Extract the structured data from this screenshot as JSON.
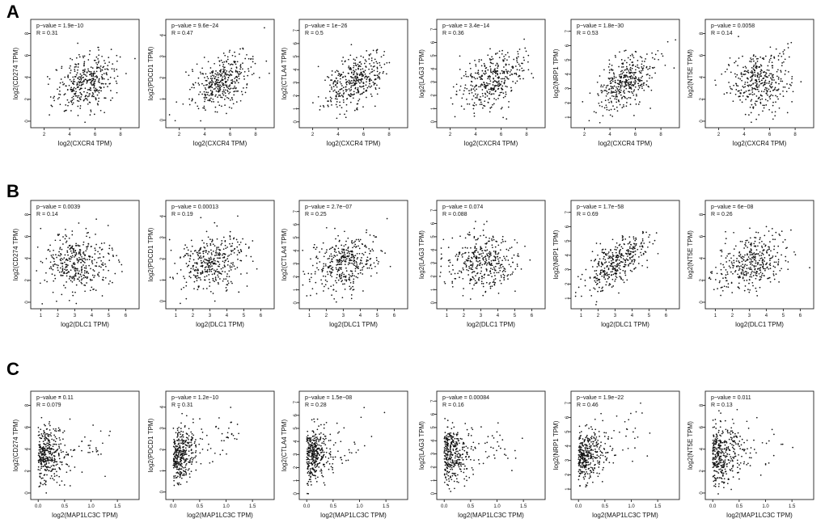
{
  "figure": {
    "rows": [
      {
        "letter": "A",
        "xlabel": "log2(CXCR4 TPM)",
        "xticks": [
          2,
          4,
          6,
          8
        ],
        "xlim": [
          1.2,
          9.2
        ],
        "x_center": 5.3,
        "x_spread": 1.2,
        "panels": [
          {
            "ylabel": "log2(CD274 TPM)",
            "pvalue": "p−value = 1.9e−10",
            "r": "R = 0.31",
            "yticks": [
              0,
              2,
              4,
              6,
              8
            ],
            "ylim": [
              -0.3,
              9
            ],
            "r_num": 0.31
          },
          {
            "ylabel": "log2(PDCD1 TPM)",
            "pvalue": "p−value = 9.6e−24",
            "r": "R = 0.47",
            "yticks": [
              0,
              1,
              2,
              3,
              4
            ],
            "ylim": [
              -0.2,
              4.6
            ],
            "r_num": 0.47
          },
          {
            "ylabel": "log2(CTLA4 TPM)",
            "pvalue": "p−value = 1e−26",
            "r": "R = 0.5",
            "yticks": [
              0,
              1,
              2,
              3,
              4,
              5,
              6,
              7
            ],
            "ylim": [
              -0.2,
              7.6
            ],
            "r_num": 0.5
          },
          {
            "ylabel": "log2(LAG3 TPM)",
            "pvalue": "p−value = 3.4e−14",
            "r": "R = 0.36",
            "yticks": [
              0,
              1,
              2,
              3,
              4,
              5,
              6,
              7
            ],
            "ylim": [
              -0.2,
              7.5
            ],
            "r_num": 0.36
          },
          {
            "ylabel": "log2(NRP1 TPM)",
            "pvalue": "p−value = 1.8e−30",
            "r": "R = 0.53",
            "yticks": [
              1,
              2,
              3,
              4,
              5,
              6,
              7
            ],
            "ylim": [
              0.5,
              7.6
            ],
            "r_num": 0.53
          },
          {
            "ylabel": "log2(NT5E TPM)",
            "pvalue": "p−value = 0.0058",
            "r": "R = 0.14",
            "yticks": [
              0,
              2,
              4,
              6,
              8
            ],
            "ylim": [
              -0.3,
              9
            ],
            "r_num": 0.14
          }
        ]
      },
      {
        "letter": "B",
        "xlabel": "log2(DLC1 TPM)",
        "xticks": [
          1,
          2,
          3,
          4,
          5,
          6
        ],
        "xlim": [
          0.6,
          6.6
        ],
        "x_center": 3.1,
        "x_spread": 1.0,
        "panels": [
          {
            "ylabel": "log2(CD274 TPM)",
            "pvalue": "p−value = 0.0039",
            "r": "R = 0.14",
            "yticks": [
              0,
              2,
              4,
              6,
              8
            ],
            "ylim": [
              -0.3,
              9
            ],
            "r_num": 0.14
          },
          {
            "ylabel": "log2(PDCD1 TPM)",
            "pvalue": "p−value = 0.00013",
            "r": "R = 0.19",
            "yticks": [
              0,
              1,
              2,
              3,
              4
            ],
            "ylim": [
              -0.2,
              4.6
            ],
            "r_num": 0.19
          },
          {
            "ylabel": "log2(CTLA4 TPM)",
            "pvalue": "p−value = 2.7e−07",
            "r": "R = 0.25",
            "yticks": [
              0,
              1,
              2,
              3,
              4,
              5,
              6,
              7
            ],
            "ylim": [
              -0.2,
              7.6
            ],
            "r_num": 0.25
          },
          {
            "ylabel": "log2(LAG3 TPM)",
            "pvalue": "p−value = 0.074",
            "r": "R = 0.088",
            "yticks": [
              0,
              1,
              2,
              3,
              4,
              5,
              6,
              7
            ],
            "ylim": [
              -0.2,
              7.5
            ],
            "r_num": 0.088
          },
          {
            "ylabel": "log2(NRP1 TPM)",
            "pvalue": "p−value = 1.7e−58",
            "r": "R = 0.69",
            "yticks": [
              1,
              2,
              3,
              4,
              5,
              6,
              7
            ],
            "ylim": [
              0.5,
              7.6
            ],
            "r_num": 0.69
          },
          {
            "ylabel": "log2(NT5E TPM)",
            "pvalue": "p−value = 6e−08",
            "r": "R = 0.26",
            "yticks": [
              0,
              2,
              4,
              6,
              8
            ],
            "ylim": [
              -0.3,
              9
            ],
            "r_num": 0.26
          }
        ]
      },
      {
        "letter": "C",
        "xlabel": "log2(MAP1LC3C TPM)",
        "xticks": [
          0.0,
          0.5,
          1.0,
          1.5
        ],
        "xtick_labels": [
          "0.0",
          "0.5",
          "1.0",
          "1.5"
        ],
        "xlim": [
          -0.08,
          1.85
        ],
        "x_center": 0.22,
        "x_spread": 0.25,
        "panels": [
          {
            "ylabel": "log2(CD274 TPM)",
            "pvalue": "p−value = 0.11",
            "r": "R = 0.079",
            "yticks": [
              0,
              2,
              4,
              6,
              8
            ],
            "ylim": [
              -0.3,
              9
            ],
            "r_num": 0.079
          },
          {
            "ylabel": "log2(PDCD1 TPM)",
            "pvalue": "p−value = 1.2e−10",
            "r": "R = 0.31",
            "yticks": [
              0,
              1,
              2,
              3,
              4
            ],
            "ylim": [
              -0.2,
              4.6
            ],
            "r_num": 0.31
          },
          {
            "ylabel": "log2(CTLA4 TPM)",
            "pvalue": "p−value = 1.5e−08",
            "r": "R = 0.28",
            "yticks": [
              0,
              1,
              2,
              3,
              4,
              5,
              6,
              7
            ],
            "ylim": [
              -0.2,
              7.6
            ],
            "r_num": 0.28
          },
          {
            "ylabel": "log2(LAG3 TPM)",
            "pvalue": "p−value = 0.00084",
            "r": "R = 0.16",
            "yticks": [
              0,
              1,
              2,
              3,
              4,
              5,
              6,
              7
            ],
            "ylim": [
              -0.2,
              7.5
            ],
            "r_num": 0.16
          },
          {
            "ylabel": "log2(NRP1 TPM)",
            "pvalue": "p−value = 1.9e−22",
            "r": "R = 0.46",
            "yticks": [
              1,
              2,
              3,
              4,
              5,
              6,
              7
            ],
            "ylim": [
              0.5,
              7.6
            ],
            "r_num": 0.46
          },
          {
            "ylabel": "log2(NT5E TPM)",
            "pvalue": "p−value = 0.011",
            "r": "R = 0.13",
            "yticks": [
              0,
              2,
              4,
              6,
              8
            ],
            "ylim": [
              -0.3,
              9
            ],
            "r_num": 0.13
          }
        ]
      }
    ]
  },
  "chart_data": {
    "type": "scatter",
    "description": "3 rows x 6 scatter plots of gene-expression correlations (log2 TPM)",
    "y_genes": [
      "CD274",
      "PDCD1",
      "CTLA4",
      "LAG3",
      "NRP1",
      "NT5E"
    ],
    "x_genes": [
      "CXCR4",
      "DLC1",
      "MAP1LC3C"
    ],
    "panels_r": {
      "CXCR4": [
        0.31,
        0.47,
        0.5,
        0.36,
        0.53,
        0.14
      ],
      "DLC1": [
        0.14,
        0.19,
        0.25,
        0.088,
        0.69,
        0.26
      ],
      "MAP1LC3C": [
        0.079,
        0.31,
        0.28,
        0.16,
        0.46,
        0.13
      ]
    },
    "panels_p": {
      "CXCR4": [
        "1.9e-10",
        "9.6e-24",
        "1e-26",
        "3.4e-14",
        "1.8e-30",
        "0.0058"
      ],
      "DLC1": [
        "0.0039",
        "0.00013",
        "2.7e-07",
        "0.074",
        "1.7e-58",
        "6e-08"
      ],
      "MAP1LC3C": [
        "0.11",
        "1.2e-10",
        "1.5e-08",
        "0.00084",
        "1.9e-22",
        "0.011"
      ]
    },
    "points_per_panel": 380
  }
}
